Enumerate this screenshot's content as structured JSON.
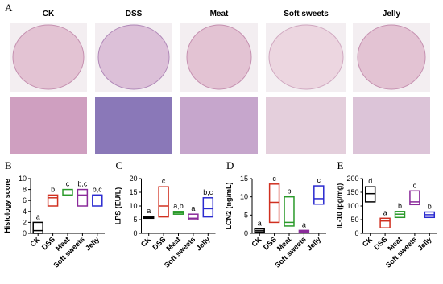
{
  "panel_a": {
    "label": "A",
    "columns": [
      "CK",
      "DSS",
      "Meat",
      "Soft sweets",
      "Jelly"
    ]
  },
  "chart_data": [
    {
      "type": "box",
      "label": "B",
      "y_label": "Histology score",
      "categories": [
        "CK",
        "DSS",
        "Meat",
        "Soft sweets",
        "Jelly"
      ],
      "colors": [
        "#000000",
        "#d03020",
        "#2a9a2a",
        "#8a2a9a",
        "#2a2ad0"
      ],
      "min": [
        0,
        5,
        7,
        5,
        5
      ],
      "median": [
        0.5,
        6.5,
        7,
        7,
        7
      ],
      "max": [
        2,
        7,
        8,
        8,
        7
      ],
      "letters": [
        "a",
        "b",
        "c",
        "b,c",
        "b,c"
      ],
      "ylim": [
        0,
        10
      ],
      "yticks": [
        0,
        2,
        4,
        6,
        8,
        10
      ]
    },
    {
      "type": "box",
      "label": "C",
      "y_label": "LPS (EU/L)",
      "categories": [
        "CK",
        "DSS",
        "Meat",
        "Soft sweets",
        "Jelly"
      ],
      "colors": [
        "#000000",
        "#d03020",
        "#2a9a2a",
        "#8a2a9a",
        "#2a2ad0"
      ],
      "min": [
        5.5,
        6,
        7,
        5,
        6
      ],
      "median": [
        5.8,
        10,
        7.5,
        5.5,
        9
      ],
      "max": [
        6.2,
        17,
        8,
        7,
        13
      ],
      "letters": [
        "a",
        "c",
        "a,b",
        "a",
        "b,c"
      ],
      "ylim": [
        0,
        20
      ],
      "yticks": [
        0,
        5,
        10,
        15,
        20
      ]
    },
    {
      "type": "box",
      "label": "D",
      "y_label": "LCN2 (ng/mL)",
      "categories": [
        "CK",
        "DSS",
        "Meat",
        "Soft sweets",
        "Jelly"
      ],
      "colors": [
        "#000000",
        "#d03020",
        "#2a9a2a",
        "#8a2a9a",
        "#2a2ad0"
      ],
      "min": [
        0.3,
        3,
        2,
        0.3,
        8
      ],
      "median": [
        0.7,
        8.5,
        3,
        0.5,
        9.5
      ],
      "max": [
        1.2,
        13.5,
        10,
        0.8,
        13
      ],
      "letters": [
        "a",
        "c",
        "b",
        "a",
        "c"
      ],
      "ylim": [
        0,
        15
      ],
      "yticks": [
        0,
        5,
        10,
        15
      ]
    },
    {
      "type": "box",
      "label": "E",
      "y_label": "IL-10 (pg/mg)",
      "categories": [
        "CK",
        "DSS",
        "Meat",
        "Soft sweets",
        "Jelly"
      ],
      "colors": [
        "#000000",
        "#d03020",
        "#2a9a2a",
        "#8a2a9a",
        "#2a2ad0"
      ],
      "min": [
        115,
        20,
        58,
        105,
        58
      ],
      "median": [
        145,
        45,
        70,
        115,
        68
      ],
      "max": [
        170,
        55,
        80,
        155,
        78
      ],
      "letters": [
        "d",
        "a",
        "b",
        "c",
        "b"
      ],
      "ylim": [
        0,
        200
      ],
      "yticks": [
        0,
        50,
        100,
        150,
        200
      ]
    }
  ]
}
